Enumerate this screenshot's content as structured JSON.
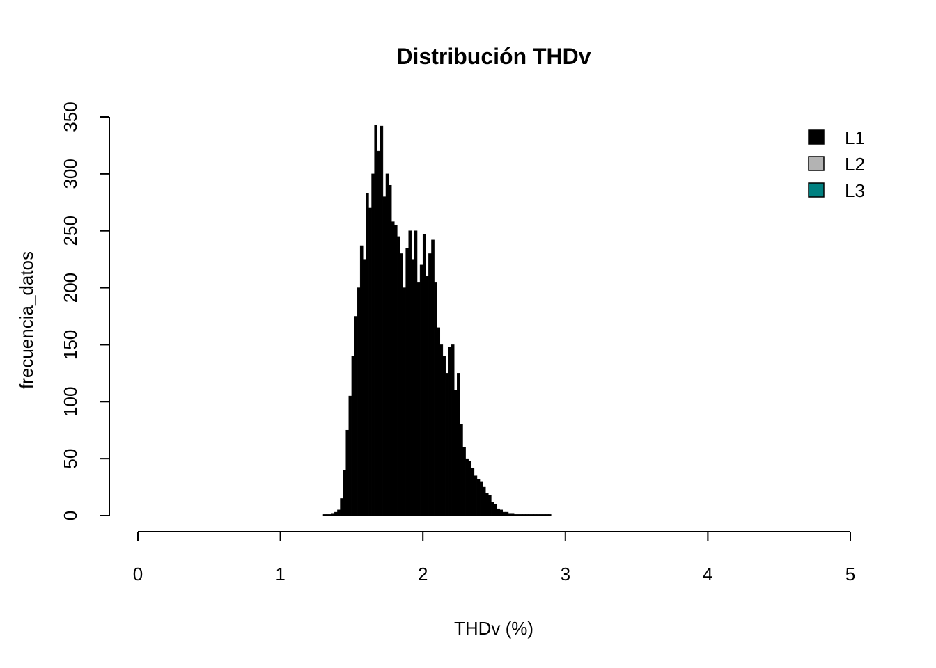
{
  "chart_data": {
    "type": "histogram",
    "title": "Distribución THDv",
    "xlabel": "THDv (%)",
    "ylabel": "frecuencia_datos",
    "bins": [
      1.3,
      1.32,
      1.34,
      1.36,
      1.38,
      1.4,
      1.42,
      1.44,
      1.46,
      1.48,
      1.5,
      1.52,
      1.54,
      1.56,
      1.58,
      1.6,
      1.62,
      1.64,
      1.66,
      1.68,
      1.7,
      1.72,
      1.74,
      1.76,
      1.78,
      1.8,
      1.82,
      1.84,
      1.86,
      1.88,
      1.9,
      1.92,
      1.94,
      1.96,
      1.98,
      2.0,
      2.02,
      2.04,
      2.06,
      2.08,
      2.1,
      2.12,
      2.14,
      2.16,
      2.18,
      2.2,
      2.22,
      2.24,
      2.26,
      2.28,
      2.3,
      2.32,
      2.34,
      2.36,
      2.38,
      2.4,
      2.42,
      2.44,
      2.46,
      2.48,
      2.5,
      2.52,
      2.54,
      2.56,
      2.58,
      2.6,
      2.62,
      2.64,
      2.66,
      2.68,
      2.7,
      2.72,
      2.74,
      2.76,
      2.78,
      2.8,
      2.82,
      2.84,
      2.86,
      2.88,
      2.9
    ],
    "series": [
      {
        "name": "L1",
        "color": "#000000",
        "values": [
          1,
          1,
          1,
          2,
          3,
          5,
          15,
          40,
          75,
          105,
          140,
          175,
          200,
          237,
          225,
          283,
          270,
          300,
          343,
          320,
          342,
          280,
          300,
          290,
          258,
          255,
          245,
          230,
          200,
          235,
          250,
          225,
          250,
          205,
          220,
          247,
          210,
          230,
          242,
          205,
          165,
          150,
          140,
          125,
          148,
          150,
          110,
          125,
          80,
          60,
          50,
          48,
          42,
          35,
          32,
          30,
          25,
          20,
          18,
          12,
          10,
          6,
          5,
          3,
          3,
          2,
          2,
          1,
          1,
          1,
          1,
          1,
          1,
          1,
          1,
          1,
          1,
          1,
          1,
          1
        ]
      }
    ],
    "legend": [
      {
        "name": "L1",
        "color": "#000000"
      },
      {
        "name": "L2",
        "color": "#b3b3b3"
      },
      {
        "name": "L3",
        "color": "#008080"
      }
    ],
    "legend_position": "top-right",
    "xlim": [
      0,
      5
    ],
    "xticks": [
      0,
      1,
      2,
      3,
      4,
      5
    ],
    "ylim": [
      0,
      350
    ],
    "yticks": [
      0,
      50,
      100,
      150,
      200,
      250,
      300,
      350
    ]
  }
}
